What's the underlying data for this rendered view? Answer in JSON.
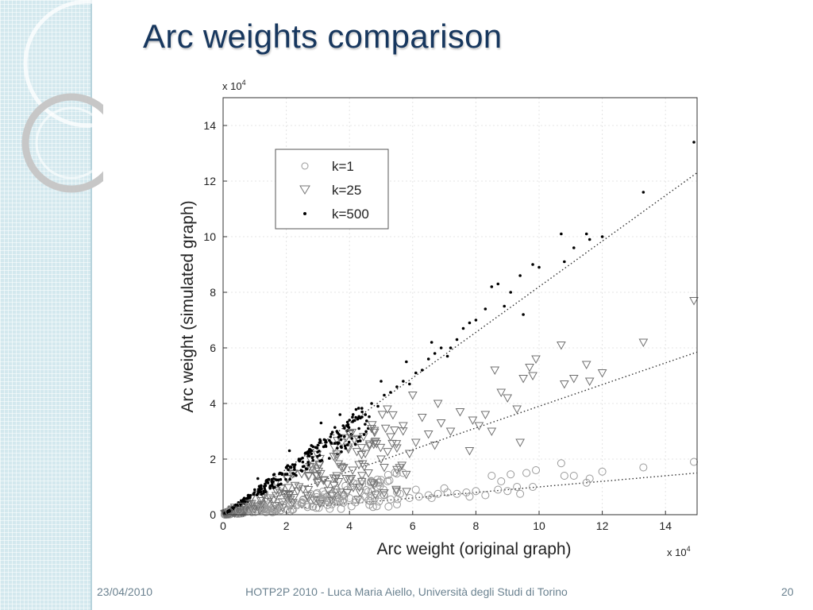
{
  "slide": {
    "title": "Arc weights comparison",
    "footer_date": "23/04/2010",
    "footer_center": "HOTP2P 2010 - Luca Maria Aiello, Università degli Studi di Torino",
    "page_number": "20",
    "colors": {
      "title": "#17375e",
      "footer": "#6b8290",
      "sidebar": "#d3e8ee"
    }
  },
  "chart_data": {
    "type": "scatter",
    "title": "",
    "xlabel": "Arc weight (original graph)",
    "ylabel": "Arc weight (simulated graph)",
    "x_multiplier": "x 10^4",
    "y_multiplier": "x 10^4",
    "xlim": [
      0,
      15
    ],
    "ylim": [
      0,
      15
    ],
    "xticks": [
      0,
      2,
      4,
      6,
      8,
      10,
      12,
      14
    ],
    "yticks": [
      0,
      2,
      4,
      6,
      8,
      10,
      12,
      14
    ],
    "grid": true,
    "legend": {
      "placement": "top-left",
      "entries": [
        "k=1",
        "k=25",
        "k=500"
      ]
    },
    "series": [
      {
        "name": "k=1",
        "marker": "circle",
        "fit_slope": 0.1,
        "points": [
          [
            0.2,
            0.1
          ],
          [
            0.5,
            0.15
          ],
          [
            0.8,
            0.2
          ],
          [
            1.0,
            0.25
          ],
          [
            1.3,
            0.3
          ],
          [
            1.6,
            0.3
          ],
          [
            1.9,
            0.35
          ],
          [
            2.2,
            0.4
          ],
          [
            2.5,
            0.45
          ],
          [
            2.8,
            0.5
          ],
          [
            3.1,
            0.5
          ],
          [
            3.4,
            0.55
          ],
          [
            3.7,
            0.5
          ],
          [
            4.0,
            0.6
          ],
          [
            4.2,
            0.55
          ],
          [
            4.5,
            0.65
          ],
          [
            4.8,
            0.6
          ],
          [
            5.1,
            0.7
          ],
          [
            5.3,
            0.55
          ],
          [
            5.6,
            0.75
          ],
          [
            5.9,
            0.6
          ],
          [
            6.2,
            0.65
          ],
          [
            6.5,
            0.7
          ],
          [
            6.8,
            0.75
          ],
          [
            7.1,
            0.8
          ],
          [
            7.4,
            0.75
          ],
          [
            7.7,
            0.8
          ],
          [
            8.0,
            0.85
          ],
          [
            8.3,
            0.7
          ],
          [
            8.7,
            0.9
          ],
          [
            9.0,
            0.85
          ],
          [
            9.4,
            0.75
          ],
          [
            9.8,
            1.0
          ],
          [
            5.7,
            1.5
          ],
          [
            6.1,
            0.9
          ],
          [
            8.5,
            1.4
          ],
          [
            8.8,
            1.2
          ],
          [
            9.1,
            1.45
          ],
          [
            9.3,
            1.0
          ],
          [
            9.6,
            1.5
          ],
          [
            9.9,
            1.6
          ],
          [
            10.7,
            1.85
          ],
          [
            10.8,
            1.4
          ],
          [
            11.1,
            1.4
          ],
          [
            11.5,
            1.15
          ],
          [
            11.6,
            1.3
          ],
          [
            12.0,
            1.55
          ],
          [
            13.3,
            1.7
          ],
          [
            14.9,
            1.9
          ],
          [
            6.6,
            0.6
          ],
          [
            7.0,
            0.95
          ],
          [
            7.8,
            0.65
          ],
          [
            4.4,
            1.1
          ],
          [
            5.0,
            1.25
          ],
          [
            3.6,
            0.8
          ]
        ]
      },
      {
        "name": "k=25",
        "marker": "triangle",
        "fit_slope": 0.39,
        "points": [
          [
            0.3,
            0.2
          ],
          [
            0.6,
            0.3
          ],
          [
            0.9,
            0.4
          ],
          [
            1.2,
            0.5
          ],
          [
            1.5,
            0.6
          ],
          [
            1.8,
            0.8
          ],
          [
            2.1,
            0.7
          ],
          [
            2.4,
            1.0
          ],
          [
            2.7,
            0.9
          ],
          [
            3.0,
            1.2
          ],
          [
            3.3,
            1.1
          ],
          [
            3.6,
            1.4
          ],
          [
            3.9,
            1.3
          ],
          [
            4.1,
            1.6
          ],
          [
            4.3,
            1.8
          ],
          [
            4.5,
            2.2
          ],
          [
            4.6,
            1.5
          ],
          [
            4.8,
            2.6
          ],
          [
            5.0,
            2.0
          ],
          [
            5.1,
            1.7
          ],
          [
            5.3,
            2.8
          ],
          [
            5.5,
            2.4
          ],
          [
            5.7,
            3.2
          ],
          [
            5.9,
            2.2
          ],
          [
            6.1,
            2.6
          ],
          [
            6.3,
            3.5
          ],
          [
            6.5,
            2.9
          ],
          [
            6.7,
            2.5
          ],
          [
            6.9,
            3.3
          ],
          [
            7.2,
            3.0
          ],
          [
            7.5,
            3.7
          ],
          [
            7.9,
            3.4
          ],
          [
            8.1,
            3.2
          ],
          [
            8.3,
            3.6
          ],
          [
            8.6,
            5.2
          ],
          [
            8.8,
            4.4
          ],
          [
            9.0,
            4.2
          ],
          [
            9.3,
            3.8
          ],
          [
            9.5,
            4.9
          ],
          [
            9.7,
            5.3
          ],
          [
            9.8,
            5.0
          ],
          [
            9.9,
            5.6
          ],
          [
            10.7,
            6.1
          ],
          [
            10.8,
            4.7
          ],
          [
            11.1,
            4.9
          ],
          [
            11.5,
            5.4
          ],
          [
            11.6,
            4.8
          ],
          [
            12.0,
            5.1
          ],
          [
            13.3,
            6.2
          ],
          [
            14.9,
            7.7
          ],
          [
            9.4,
            2.6
          ],
          [
            8.5,
            3.0
          ],
          [
            7.8,
            2.3
          ],
          [
            4.0,
            2.9
          ],
          [
            4.7,
            3.1
          ],
          [
            5.2,
            3.8
          ],
          [
            6.0,
            4.3
          ],
          [
            6.8,
            4.0
          ],
          [
            3.5,
            2.1
          ],
          [
            2.8,
            1.6
          ]
        ]
      },
      {
        "name": "k=500",
        "marker": "dot",
        "fit_slope": 0.82,
        "points": [
          [
            0.2,
            0.15
          ],
          [
            0.4,
            0.35
          ],
          [
            0.6,
            0.5
          ],
          [
            0.8,
            0.7
          ],
          [
            1.0,
            0.9
          ],
          [
            1.2,
            1.0
          ],
          [
            1.4,
            1.2
          ],
          [
            1.6,
            1.3
          ],
          [
            1.8,
            1.5
          ],
          [
            2.0,
            1.7
          ],
          [
            2.2,
            1.8
          ],
          [
            2.4,
            2.0
          ],
          [
            2.6,
            2.2
          ],
          [
            2.8,
            2.3
          ],
          [
            3.0,
            2.5
          ],
          [
            3.2,
            2.7
          ],
          [
            3.4,
            2.8
          ],
          [
            3.6,
            3.0
          ],
          [
            3.8,
            3.2
          ],
          [
            4.0,
            3.4
          ],
          [
            4.2,
            3.5
          ],
          [
            4.4,
            3.7
          ],
          [
            4.5,
            3.6
          ],
          [
            4.7,
            4.0
          ],
          [
            4.9,
            3.9
          ],
          [
            5.1,
            4.3
          ],
          [
            5.3,
            4.4
          ],
          [
            5.5,
            4.6
          ],
          [
            5.7,
            4.8
          ],
          [
            5.9,
            4.7
          ],
          [
            6.1,
            5.1
          ],
          [
            6.3,
            5.2
          ],
          [
            6.5,
            5.6
          ],
          [
            6.7,
            5.8
          ],
          [
            6.9,
            6.0
          ],
          [
            7.1,
            5.7
          ],
          [
            7.4,
            6.3
          ],
          [
            7.6,
            6.7
          ],
          [
            7.8,
            6.9
          ],
          [
            8.0,
            7.0
          ],
          [
            8.3,
            7.4
          ],
          [
            8.5,
            8.2
          ],
          [
            8.7,
            8.3
          ],
          [
            8.9,
            7.5
          ],
          [
            9.1,
            8.0
          ],
          [
            9.4,
            8.6
          ],
          [
            9.5,
            7.2
          ],
          [
            9.8,
            9.0
          ],
          [
            10.0,
            8.9
          ],
          [
            10.7,
            10.1
          ],
          [
            10.8,
            9.1
          ],
          [
            11.1,
            9.6
          ],
          [
            11.5,
            10.1
          ],
          [
            11.6,
            9.9
          ],
          [
            12.0,
            10.0
          ],
          [
            13.3,
            11.6
          ],
          [
            14.9,
            13.4
          ],
          [
            1.1,
            1.3
          ],
          [
            2.1,
            2.3
          ],
          [
            3.1,
            3.3
          ],
          [
            3.7,
            3.6
          ],
          [
            4.3,
            3.1
          ],
          [
            5.0,
            4.8
          ],
          [
            5.8,
            5.5
          ],
          [
            6.6,
            6.2
          ],
          [
            7.2,
            6.0
          ]
        ]
      }
    ]
  }
}
